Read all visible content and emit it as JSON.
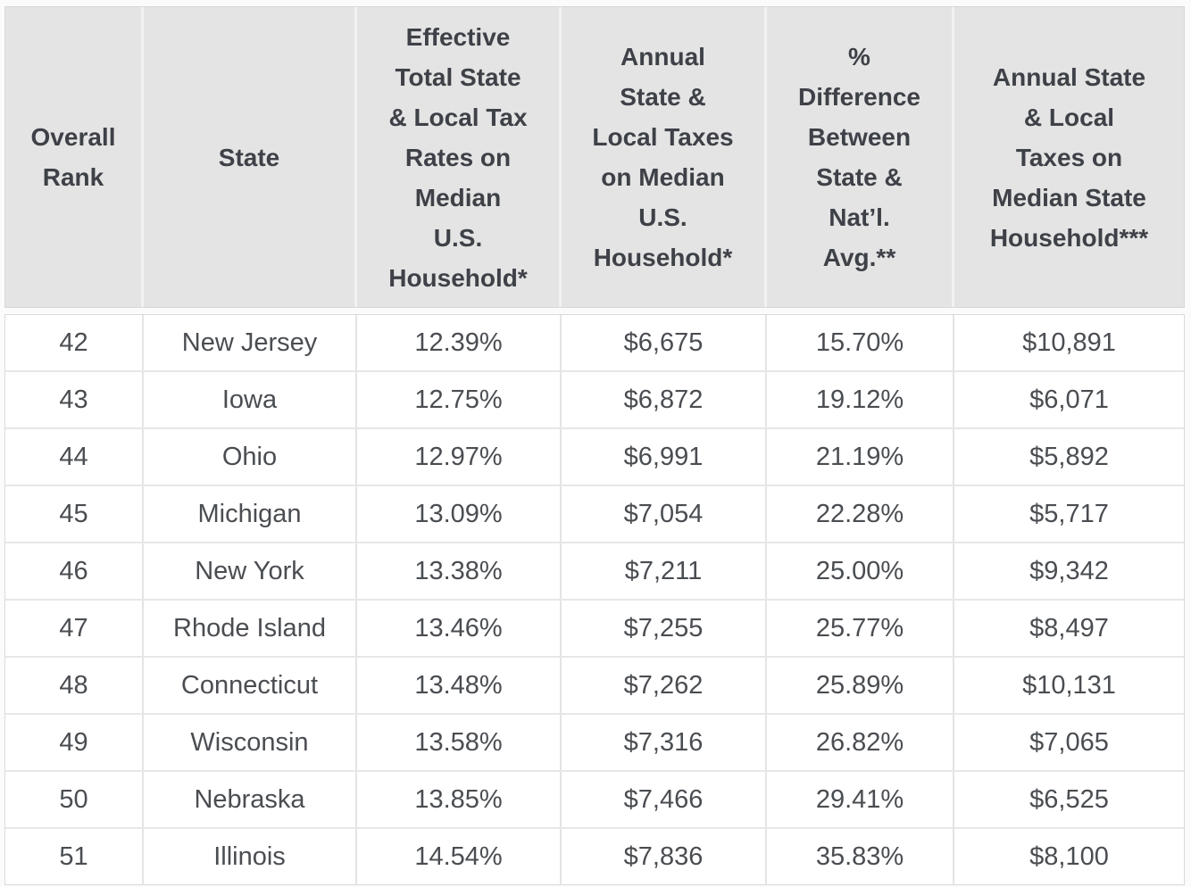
{
  "colors": {
    "header_bg": "#e4e4e4",
    "header_text": "#3e4147",
    "body_text": "#4a4d51",
    "grid_line": "#e4e4e4",
    "outer_border": "#d7d7d7",
    "row_bg": "#ffffff"
  },
  "chart_data": {
    "type": "table",
    "columns": [
      "Overall\nRank",
      "State",
      "Effective\nTotal State\n& Local Tax\nRates on\nMedian\nU.S.\nHousehold*",
      "Annual\nState &\nLocal Taxes\non Median\nU.S.\nHousehold*",
      "%\nDifference\nBetween\nState &\nNat’l.\nAvg.**",
      "Annual State\n& Local\nTaxes on\nMedian State\nHousehold***"
    ],
    "rows": [
      [
        "42",
        "New Jersey",
        "12.39%",
        "$6,675",
        "15.70%",
        "$10,891"
      ],
      [
        "43",
        "Iowa",
        "12.75%",
        "$6,872",
        "19.12%",
        "$6,071"
      ],
      [
        "44",
        "Ohio",
        "12.97%",
        "$6,991",
        "21.19%",
        "$5,892"
      ],
      [
        "45",
        "Michigan",
        "13.09%",
        "$7,054",
        "22.28%",
        "$5,717"
      ],
      [
        "46",
        "New York",
        "13.38%",
        "$7,211",
        "25.00%",
        "$9,342"
      ],
      [
        "47",
        "Rhode Island",
        "13.46%",
        "$7,255",
        "25.77%",
        "$8,497"
      ],
      [
        "48",
        "Connecticut",
        "13.48%",
        "$7,262",
        "25.89%",
        "$10,131"
      ],
      [
        "49",
        "Wisconsin",
        "13.58%",
        "$7,316",
        "26.82%",
        "$7,065"
      ],
      [
        "50",
        "Nebraska",
        "13.85%",
        "$7,466",
        "29.41%",
        "$6,525"
      ],
      [
        "51",
        "Illinois",
        "14.54%",
        "$7,836",
        "35.83%",
        "$8,100"
      ]
    ]
  }
}
